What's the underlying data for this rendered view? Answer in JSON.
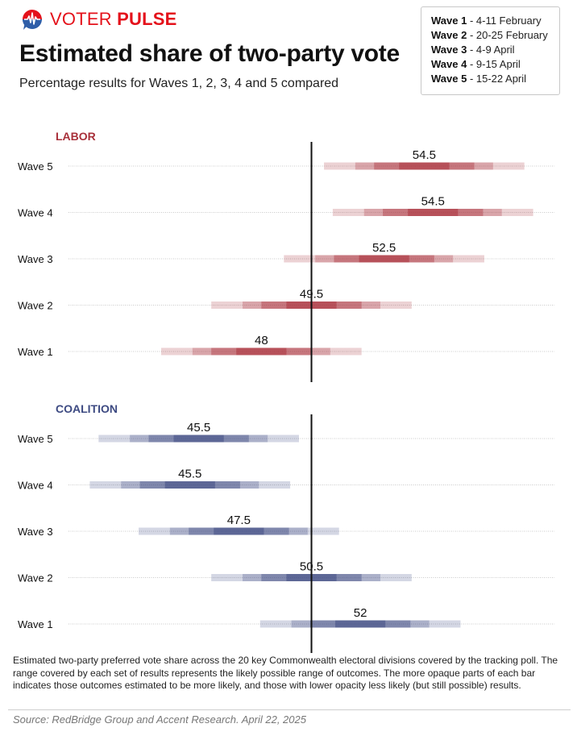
{
  "brand": {
    "name_part1": "VOTER",
    "name_part2": "PULSE",
    "logo_icon": "speech-bubble-pulse-icon",
    "colors": {
      "red": "#e4121b",
      "blue": "#2f5ea8"
    }
  },
  "header": {
    "title": "Estimated share of two-party vote",
    "subtitle": "Percentage results for Waves 1, 2, 3, 4 and 5 compared"
  },
  "legend": {
    "items": [
      {
        "wave": "Wave 1",
        "dates": " - 4-11 February"
      },
      {
        "wave": "Wave 2",
        "dates": " - 20-25 February"
      },
      {
        "wave": "Wave 3",
        "dates": " - 4-9 April"
      },
      {
        "wave": "Wave 4",
        "dates": " - 9-15 April"
      },
      {
        "wave": "Wave 5",
        "dates": " - 15-22 April"
      }
    ]
  },
  "chart_data": {
    "type": "range-bar",
    "title": "Estimated share of two-party vote",
    "reference_line": 50,
    "x_range": [
      40.3,
      59.7
    ],
    "grid": "dotted row guides",
    "band_offsets": [
      4,
      2.75,
      2,
      1
    ],
    "band_opacity": [
      0.22,
      0.5,
      0.72,
      0.95
    ],
    "panels": [
      {
        "name": "LABOR",
        "color": "#a8303a",
        "rows": [
          {
            "label": "Wave 5",
            "value": 54.5,
            "center": 54.5
          },
          {
            "label": "Wave 4",
            "value": 54.5,
            "center": 54.85
          },
          {
            "label": "Wave 3",
            "value": 52.5,
            "center": 52.9
          },
          {
            "label": "Wave 2",
            "value": 49.5,
            "center": 50.0
          },
          {
            "label": "Wave 1",
            "value": 48,
            "center": 48.0
          }
        ]
      },
      {
        "name": "COALITION",
        "color": "#3d4a82",
        "rows": [
          {
            "label": "Wave 5",
            "value": 45.5,
            "center": 45.5
          },
          {
            "label": "Wave 4",
            "value": 45.5,
            "center": 45.15
          },
          {
            "label": "Wave 3",
            "value": 47.5,
            "center": 47.1
          },
          {
            "label": "Wave 2",
            "value": 50.5,
            "center": 50.0
          },
          {
            "label": "Wave 1",
            "value": 52,
            "center": 51.95
          }
        ]
      }
    ]
  },
  "footnote": "Estimated two-party preferred vote share across the 20 key Commonwealth electoral divisions covered by the tracking poll. The range covered by each set of results represents the likely possible range of outcomes. The more opaque parts of each bar indicates those outcomes estimated to be more likely, and those with lower opacity less likely (but still possible) results.",
  "source": "Source: RedBridge Group and Accent Research. April 22, 2025"
}
